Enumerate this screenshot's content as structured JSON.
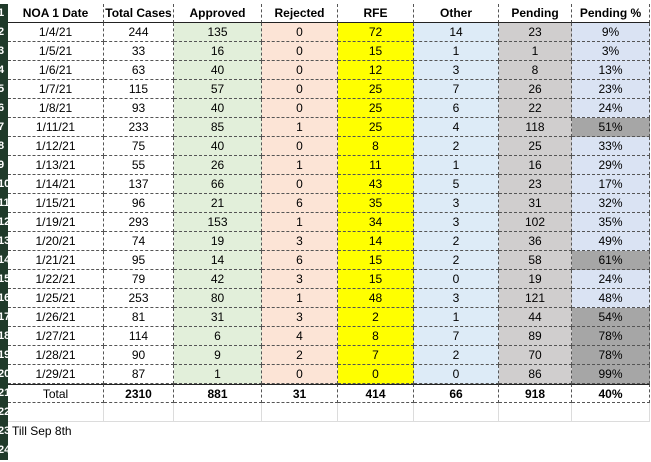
{
  "colors": {
    "approved": "#e2efda",
    "rejected": "#fce4d6",
    "rfe": "#ffff00",
    "other": "#ddebf7",
    "pending": "#d0cece",
    "pending_pct_light": "#dae3f3",
    "pending_pct_dark": "#a6a6a6"
  },
  "row_numbers": [
    "1",
    "2",
    "3",
    "4",
    "5",
    "6",
    "7",
    "8",
    "9",
    "10",
    "11",
    "12",
    "13",
    "14",
    "15",
    "16",
    "17",
    "18",
    "19",
    "20",
    "21",
    "22",
    "23",
    "24"
  ],
  "headers": [
    "NOA 1 Date",
    "Total Cases",
    "Approved",
    "Rejected",
    "RFE",
    "Other",
    "Pending",
    "Pending %"
  ],
  "rows": [
    {
      "date": "1/4/21",
      "total": "244",
      "approved": "135",
      "rejected": "0",
      "rfe": "72",
      "other": "14",
      "pending": "23",
      "pct": "9%",
      "highlight": false
    },
    {
      "date": "1/5/21",
      "total": "33",
      "approved": "16",
      "rejected": "0",
      "rfe": "15",
      "other": "1",
      "pending": "1",
      "pct": "3%",
      "highlight": false
    },
    {
      "date": "1/6/21",
      "total": "63",
      "approved": "40",
      "rejected": "0",
      "rfe": "12",
      "other": "3",
      "pending": "8",
      "pct": "13%",
      "highlight": false
    },
    {
      "date": "1/7/21",
      "total": "115",
      "approved": "57",
      "rejected": "0",
      "rfe": "25",
      "other": "7",
      "pending": "26",
      "pct": "23%",
      "highlight": false
    },
    {
      "date": "1/8/21",
      "total": "93",
      "approved": "40",
      "rejected": "0",
      "rfe": "25",
      "other": "6",
      "pending": "22",
      "pct": "24%",
      "highlight": false
    },
    {
      "date": "1/11/21",
      "total": "233",
      "approved": "85",
      "rejected": "1",
      "rfe": "25",
      "other": "4",
      "pending": "118",
      "pct": "51%",
      "highlight": true
    },
    {
      "date": "1/12/21",
      "total": "75",
      "approved": "40",
      "rejected": "0",
      "rfe": "8",
      "other": "2",
      "pending": "25",
      "pct": "33%",
      "highlight": false
    },
    {
      "date": "1/13/21",
      "total": "55",
      "approved": "26",
      "rejected": "1",
      "rfe": "11",
      "other": "1",
      "pending": "16",
      "pct": "29%",
      "highlight": false
    },
    {
      "date": "1/14/21",
      "total": "137",
      "approved": "66",
      "rejected": "0",
      "rfe": "43",
      "other": "5",
      "pending": "23",
      "pct": "17%",
      "highlight": false
    },
    {
      "date": "1/15/21",
      "total": "96",
      "approved": "21",
      "rejected": "6",
      "rfe": "35",
      "other": "3",
      "pending": "31",
      "pct": "32%",
      "highlight": false
    },
    {
      "date": "1/19/21",
      "total": "293",
      "approved": "153",
      "rejected": "1",
      "rfe": "34",
      "other": "3",
      "pending": "102",
      "pct": "35%",
      "highlight": false
    },
    {
      "date": "1/20/21",
      "total": "74",
      "approved": "19",
      "rejected": "3",
      "rfe": "14",
      "other": "2",
      "pending": "36",
      "pct": "49%",
      "highlight": false
    },
    {
      "date": "1/21/21",
      "total": "95",
      "approved": "14",
      "rejected": "6",
      "rfe": "15",
      "other": "2",
      "pending": "58",
      "pct": "61%",
      "highlight": true
    },
    {
      "date": "1/22/21",
      "total": "79",
      "approved": "42",
      "rejected": "3",
      "rfe": "15",
      "other": "0",
      "pending": "19",
      "pct": "24%",
      "highlight": false
    },
    {
      "date": "1/25/21",
      "total": "253",
      "approved": "80",
      "rejected": "1",
      "rfe": "48",
      "other": "3",
      "pending": "121",
      "pct": "48%",
      "highlight": false
    },
    {
      "date": "1/26/21",
      "total": "81",
      "approved": "31",
      "rejected": "3",
      "rfe": "2",
      "other": "1",
      "pending": "44",
      "pct": "54%",
      "highlight": true
    },
    {
      "date": "1/27/21",
      "total": "114",
      "approved": "6",
      "rejected": "4",
      "rfe": "8",
      "other": "7",
      "pending": "89",
      "pct": "78%",
      "highlight": true
    },
    {
      "date": "1/28/21",
      "total": "90",
      "approved": "9",
      "rejected": "2",
      "rfe": "7",
      "other": "2",
      "pending": "70",
      "pct": "78%",
      "highlight": true
    },
    {
      "date": "1/29/21",
      "total": "87",
      "approved": "1",
      "rejected": "0",
      "rfe": "0",
      "other": "0",
      "pending": "86",
      "pct": "99%",
      "highlight": true
    }
  ],
  "totals": {
    "label": "Total",
    "total": "2310",
    "approved": "881",
    "rejected": "31",
    "rfe": "414",
    "other": "66",
    "pending": "918",
    "pct": "40%"
  },
  "note": "Till Sep 8th"
}
